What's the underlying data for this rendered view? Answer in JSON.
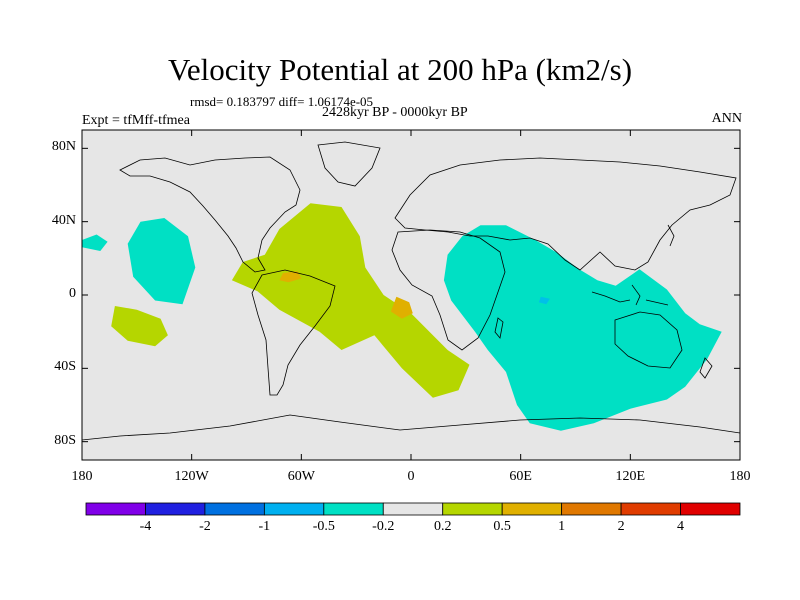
{
  "title": "Velocity Potential at 200 hPa (km2/s)",
  "stats": "rmsd= 0.183797 diff= 1.06174e-05",
  "experiment": "Expt = tfMff-tfmea",
  "period": "2428kyr BP - 0000kyr BP",
  "season": "ANN",
  "map": {
    "lon_range": [
      -180,
      180
    ],
    "lat_range": [
      -90,
      90
    ],
    "y_ticks": [
      {
        "lat": 80,
        "label": "80N"
      },
      {
        "lat": 40,
        "label": "40N"
      },
      {
        "lat": 0,
        "label": "0"
      },
      {
        "lat": -40,
        "label": "40S"
      },
      {
        "lat": -80,
        "label": "80S"
      }
    ],
    "x_ticks": [
      {
        "lon": -180,
        "label": "180"
      },
      {
        "lon": -120,
        "label": "120W"
      },
      {
        "lon": -60,
        "label": "60W"
      },
      {
        "lon": 0,
        "label": "0"
      },
      {
        "lon": 60,
        "label": "60E"
      },
      {
        "lon": 120,
        "label": "120E"
      },
      {
        "lon": 180,
        "label": "180"
      }
    ],
    "background_color": "#e6e6e6",
    "regions": [
      {
        "name": "atlantic-positive-anomaly",
        "level": "0.2 to 0.5",
        "color": "#b5d600",
        "points": [
          [
            -80,
            22
          ],
          [
            -72,
            36
          ],
          [
            -55,
            50
          ],
          [
            -38,
            48
          ],
          [
            -28,
            32
          ],
          [
            -25,
            15
          ],
          [
            -15,
            0
          ],
          [
            0,
            -10
          ],
          [
            20,
            -30
          ],
          [
            32,
            -38
          ],
          [
            26,
            -52
          ],
          [
            12,
            -56
          ],
          [
            -5,
            -40
          ],
          [
            -20,
            -22
          ],
          [
            -38,
            -30
          ],
          [
            -50,
            -20
          ],
          [
            -72,
            -8
          ],
          [
            -84,
            2
          ],
          [
            -98,
            8
          ],
          [
            -92,
            18
          ]
        ]
      },
      {
        "name": "south-pacific-positive-anomaly",
        "level": "0.2 to 0.5",
        "color": "#b5d600",
        "points": [
          [
            -162,
            -6
          ],
          [
            -150,
            -8
          ],
          [
            -137,
            -13
          ],
          [
            -133,
            -22
          ],
          [
            -140,
            -28
          ],
          [
            -155,
            -25
          ],
          [
            -164,
            -17
          ]
        ]
      },
      {
        "name": "indian-ocean-negative-anomaly",
        "level": "-0.5 to -0.2",
        "color": "#00e0c4",
        "points": [
          [
            28,
            32
          ],
          [
            38,
            38
          ],
          [
            52,
            38
          ],
          [
            68,
            30
          ],
          [
            80,
            23
          ],
          [
            92,
            14
          ],
          [
            102,
            8
          ],
          [
            112,
            5
          ],
          [
            125,
            14
          ],
          [
            140,
            3
          ],
          [
            150,
            -10
          ],
          [
            158,
            -16
          ],
          [
            170,
            -20
          ],
          [
            162,
            -35
          ],
          [
            150,
            -50
          ],
          [
            140,
            -57
          ],
          [
            120,
            -62
          ],
          [
            100,
            -70
          ],
          [
            82,
            -74
          ],
          [
            65,
            -70
          ],
          [
            58,
            -60
          ],
          [
            52,
            -42
          ],
          [
            42,
            -30
          ],
          [
            35,
            -20
          ],
          [
            22,
            -3
          ],
          [
            18,
            8
          ],
          [
            20,
            22
          ]
        ]
      },
      {
        "name": "east-pacific-negative-anomaly",
        "level": "-0.5 to -0.2",
        "color": "#00e0c4",
        "points": [
          [
            -148,
            40
          ],
          [
            -135,
            42
          ],
          [
            -122,
            32
          ],
          [
            -118,
            15
          ],
          [
            -125,
            -5
          ],
          [
            -140,
            -3
          ],
          [
            -152,
            10
          ],
          [
            -155,
            28
          ]
        ]
      },
      {
        "name": "west-pacific-negative-anomaly",
        "level": "-0.5 to -0.2",
        "color": "#00e0c4",
        "points": [
          [
            -180,
            30
          ],
          [
            -172,
            33
          ],
          [
            -166,
            29
          ],
          [
            -170,
            24
          ],
          [
            -180,
            26
          ]
        ]
      },
      {
        "name": "caribbean-positive-anomaly",
        "level": "0.5 to 1",
        "color": "#e0b000",
        "points": [
          [
            -70,
            12
          ],
          [
            -62,
            13
          ],
          [
            -60,
            9
          ],
          [
            -67,
            7
          ],
          [
            -72,
            8
          ]
        ]
      },
      {
        "name": "brazil-positive-anomaly",
        "level": "0.5 to 1",
        "color": "#e0b000",
        "points": [
          [
            -8,
            -1
          ],
          [
            -1,
            -4
          ],
          [
            1,
            -10
          ],
          [
            -5,
            -13
          ],
          [
            -11,
            -9
          ]
        ]
      },
      {
        "name": "arabian-sea-negative-anomaly",
        "level": "-1 to -0.5",
        "color": "#00c0e8",
        "points": [
          [
            71,
            -1
          ],
          [
            76,
            -2
          ],
          [
            74,
            -5
          ],
          [
            70,
            -4
          ]
        ]
      }
    ]
  },
  "colorbar": {
    "colors": [
      "#8000e8",
      "#2020e0",
      "#0070e0",
      "#00b0f0",
      "#00e0c4",
      "#e6e6e6",
      "#b5d600",
      "#e0b000",
      "#e07800",
      "#e03c00",
      "#e00000"
    ],
    "labels": [
      "-4",
      "-2",
      "-1",
      "-0.5",
      "-0.2",
      "0.2",
      "0.5",
      "1",
      "2",
      "4"
    ]
  }
}
